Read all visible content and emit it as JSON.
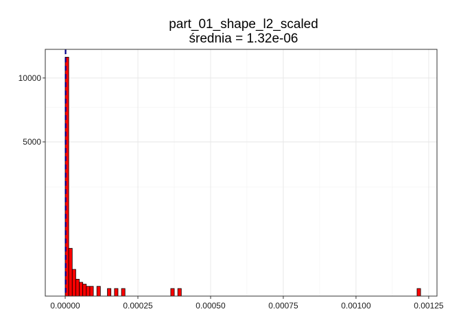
{
  "chart_data": {
    "type": "bar",
    "title": "part_01_shape_l2_scaled",
    "subtitle": "średnia = 1.32e-06",
    "xlabel": "",
    "ylabel": "",
    "x_ticks": [
      {
        "value": 0.0,
        "label": "0.00000"
      },
      {
        "value": 0.00025,
        "label": "0.00025"
      },
      {
        "value": 0.0005,
        "label": "0.00050"
      },
      {
        "value": 0.00075,
        "label": "0.00075"
      },
      {
        "value": 0.001,
        "label": "0.00100"
      },
      {
        "value": 0.00125,
        "label": "0.00125"
      }
    ],
    "y_ticks": [
      {
        "value": 5000,
        "label": "5000"
      },
      {
        "value": 10000,
        "label": "10000"
      }
    ],
    "y_scale": "sqrt",
    "xlim": [
      -6.85e-05,
      0.0012785
    ],
    "ylim": [
      0,
      12800
    ],
    "grid": true,
    "bin_width": 1.21e-05,
    "bins": [
      {
        "x": 0.0,
        "count": 12000
      },
      {
        "x": 1.21e-05,
        "count": 480
      },
      {
        "x": 2.42e-05,
        "count": 150
      },
      {
        "x": 3.63e-05,
        "count": 60
      },
      {
        "x": 4.84e-05,
        "count": 40
      },
      {
        "x": 6.05e-05,
        "count": 30
      },
      {
        "x": 7.26e-05,
        "count": 20
      },
      {
        "x": 8.47e-05,
        "count": 20
      },
      {
        "x": 0.0001089,
        "count": 20
      },
      {
        "x": 0.0001452,
        "count": 12
      },
      {
        "x": 0.0001694,
        "count": 12
      },
      {
        "x": 0.0001936,
        "count": 12
      },
      {
        "x": 0.000363,
        "count": 12
      },
      {
        "x": 0.0003872,
        "count": 12
      },
      {
        "x": 0.00121,
        "count": 12
      }
    ],
    "mean": 1.32e-06,
    "colors": {
      "bar_fill": "#ff0000",
      "bar_stroke": "#000000",
      "mean_line": "#00008b",
      "grid": "#e6e6e6",
      "panel_border": "#333333"
    }
  }
}
